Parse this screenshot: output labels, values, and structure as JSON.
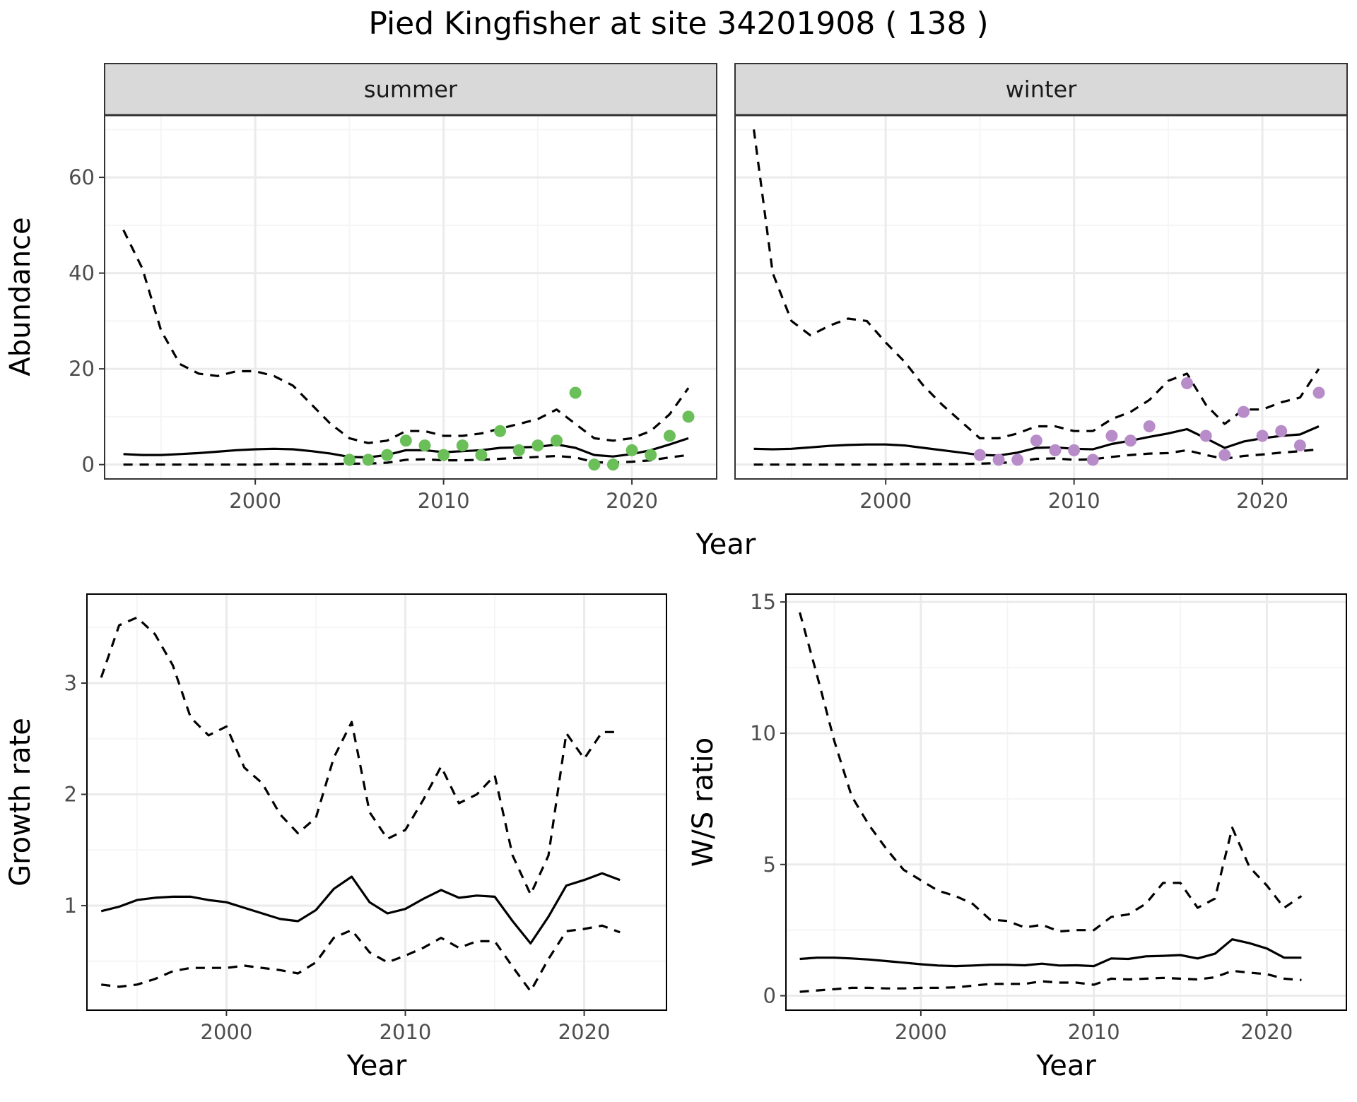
{
  "title": "Pied Kingfisher at site 34201908 ( 138 )",
  "colors": {
    "summer_points": "#6bbf59",
    "winter_points": "#b78cc9",
    "lines": "#000000",
    "grid_major": "#ebebeb",
    "grid_minor": "#f5f5f5",
    "strip_bg": "#d9d9d9"
  },
  "chart_data": [
    {
      "type": "line",
      "panel": "summer",
      "facet_label": "summer",
      "xlabel": "Year",
      "ylabel": "Abundance",
      "xlim": [
        1992,
        2024.5
      ],
      "ylim": [
        -3,
        73
      ],
      "x_ticks": [
        2000,
        2010,
        2020
      ],
      "y_ticks": [
        0,
        20,
        40,
        60
      ],
      "grid": true,
      "shared_axes": true,
      "points": {
        "color": "#6bbf59",
        "x": [
          2005,
          2006,
          2007,
          2008,
          2009,
          2010,
          2011,
          2012,
          2013,
          2014,
          2015,
          2016,
          2017,
          2018,
          2019,
          2020,
          2021,
          2022,
          2023
        ],
        "y": [
          1,
          1,
          2,
          5,
          4,
          2,
          4,
          2,
          7,
          3,
          4,
          5,
          15,
          0,
          0,
          3,
          2,
          6,
          10
        ]
      },
      "series": [
        {
          "style": "solid",
          "x": [
            1993,
            1994,
            1995,
            1996,
            1997,
            1998,
            1999,
            2000,
            2001,
            2002,
            2003,
            2004,
            2005,
            2006,
            2007,
            2008,
            2009,
            2010,
            2011,
            2012,
            2013,
            2014,
            2015,
            2016,
            2017,
            2018,
            2019,
            2020,
            2021,
            2022,
            2023
          ],
          "y": [
            2.2,
            2.0,
            2.0,
            2.2,
            2.4,
            2.7,
            3.0,
            3.2,
            3.3,
            3.2,
            2.8,
            2.3,
            1.6,
            1.5,
            2.0,
            3.0,
            3.0,
            2.6,
            2.8,
            3.0,
            3.5,
            3.6,
            3.7,
            4.2,
            3.5,
            2.0,
            1.7,
            2.2,
            3.0,
            4.2,
            5.5
          ]
        },
        {
          "style": "dashed",
          "x": [
            1993,
            1994,
            1995,
            1996,
            1997,
            1998,
            1999,
            2000,
            2001,
            2002,
            2003,
            2004,
            2005,
            2006,
            2007,
            2008,
            2009,
            2010,
            2011,
            2012,
            2013,
            2014,
            2015,
            2016,
            2017,
            2018,
            2019,
            2020,
            2021,
            2022,
            2023
          ],
          "y": [
            49,
            41,
            28,
            21,
            19,
            18.5,
            19.5,
            19.5,
            18.5,
            16.5,
            12.5,
            8.5,
            5.5,
            4.5,
            5,
            7,
            7,
            6,
            6,
            6.5,
            7.5,
            8.5,
            9.5,
            11.5,
            8.5,
            5.5,
            5,
            5.5,
            7,
            10.5,
            16
          ]
        },
        {
          "style": "dashed",
          "x": [
            1993,
            1994,
            1995,
            1996,
            1997,
            1998,
            1999,
            2000,
            2001,
            2002,
            2003,
            2004,
            2005,
            2006,
            2007,
            2008,
            2009,
            2010,
            2011,
            2012,
            2013,
            2014,
            2015,
            2016,
            2017,
            2018,
            2019,
            2020,
            2021,
            2022,
            2023
          ],
          "y": [
            0,
            0,
            0,
            0,
            0,
            0,
            0,
            0,
            0.1,
            0.1,
            0.1,
            0.1,
            0.2,
            0.2,
            0.4,
            1.0,
            1.1,
            0.9,
            0.9,
            1.0,
            1.2,
            1.4,
            1.6,
            1.8,
            1.5,
            0.5,
            0.4,
            0.6,
            0.9,
            1.5,
            2.0
          ]
        }
      ]
    },
    {
      "type": "line",
      "panel": "winter",
      "facet_label": "winter",
      "xlabel": "Year",
      "ylabel": "Abundance",
      "xlim": [
        1992,
        2024.5
      ],
      "ylim": [
        -3,
        73
      ],
      "x_ticks": [
        2000,
        2010,
        2020
      ],
      "y_ticks": [
        0,
        20,
        40,
        60
      ],
      "grid": true,
      "shared_axes": true,
      "points": {
        "color": "#b78cc9",
        "x": [
          2005,
          2006,
          2007,
          2008,
          2009,
          2010,
          2011,
          2012,
          2013,
          2014,
          2016,
          2017,
          2018,
          2019,
          2020,
          2021,
          2022,
          2023
        ],
        "y": [
          2,
          1,
          1,
          5,
          3,
          3,
          1,
          6,
          5,
          8,
          17,
          6,
          2,
          11,
          6,
          7,
          4,
          15
        ]
      },
      "series": [
        {
          "style": "solid",
          "x": [
            1993,
            1994,
            1995,
            1996,
            1997,
            1998,
            1999,
            2000,
            2001,
            2002,
            2003,
            2004,
            2005,
            2006,
            2007,
            2008,
            2009,
            2010,
            2011,
            2012,
            2013,
            2014,
            2015,
            2016,
            2017,
            2018,
            2019,
            2020,
            2021,
            2022,
            2023
          ],
          "y": [
            3.3,
            3.2,
            3.3,
            3.6,
            3.9,
            4.1,
            4.2,
            4.2,
            4.0,
            3.5,
            3.0,
            2.5,
            2.0,
            1.9,
            2.5,
            3.5,
            3.6,
            3.3,
            3.2,
            4.3,
            5.0,
            5.8,
            6.5,
            7.4,
            5.5,
            3.5,
            4.8,
            5.5,
            6.0,
            6.3,
            8.0
          ]
        },
        {
          "style": "dashed",
          "x": [
            1993,
            1994,
            1995,
            1996,
            1997,
            1998,
            1999,
            2000,
            2001,
            2002,
            2003,
            2004,
            2005,
            2006,
            2007,
            2008,
            2009,
            2010,
            2011,
            2012,
            2013,
            2014,
            2015,
            2016,
            2017,
            2018,
            2019,
            2020,
            2021,
            2022,
            2023
          ],
          "y": [
            70,
            40,
            30,
            27,
            29,
            30.5,
            30,
            25.5,
            21.5,
            16.5,
            12.5,
            9,
            5.5,
            5.5,
            6.5,
            8,
            8,
            7,
            7,
            9.5,
            11,
            13.5,
            17.5,
            19,
            12.5,
            8.5,
            11.5,
            11.5,
            13,
            14,
            20
          ]
        },
        {
          "style": "dashed",
          "x": [
            1993,
            1994,
            1995,
            1996,
            1997,
            1998,
            1999,
            2000,
            2001,
            2002,
            2003,
            2004,
            2005,
            2006,
            2007,
            2008,
            2009,
            2010,
            2011,
            2012,
            2013,
            2014,
            2015,
            2016,
            2017,
            2018,
            2019,
            2020,
            2021,
            2022,
            2023
          ],
          "y": [
            0,
            0,
            0,
            0,
            0,
            0,
            0,
            0,
            0.1,
            0.1,
            0.1,
            0.1,
            0.2,
            0.3,
            0.6,
            1.2,
            1.3,
            1.0,
            1.1,
            1.6,
            2.0,
            2.3,
            2.4,
            3.0,
            2.0,
            1.2,
            1.8,
            2.1,
            2.5,
            2.8,
            3.2
          ]
        }
      ]
    },
    {
      "type": "line",
      "panel": "growth",
      "xlabel": "Year",
      "ylabel": "Growth rate",
      "xlim": [
        1992.2,
        2024.6
      ],
      "ylim": [
        0.06,
        3.8
      ],
      "x_ticks": [
        2000,
        2010,
        2020
      ],
      "y_ticks": [
        1,
        2,
        3
      ],
      "grid": true,
      "series": [
        {
          "style": "solid",
          "x": [
            1993,
            1994,
            1995,
            1996,
            1997,
            1998,
            1999,
            2000,
            2001,
            2002,
            2003,
            2004,
            2005,
            2006,
            2007,
            2008,
            2009,
            2010,
            2011,
            2012,
            2013,
            2014,
            2015,
            2016,
            2017,
            2018,
            2019,
            2020,
            2021,
            2022
          ],
          "y": [
            0.95,
            0.99,
            1.05,
            1.07,
            1.08,
            1.08,
            1.05,
            1.03,
            0.98,
            0.93,
            0.88,
            0.86,
            0.96,
            1.15,
            1.26,
            1.03,
            0.93,
            0.97,
            1.06,
            1.14,
            1.07,
            1.09,
            1.08,
            0.86,
            0.66,
            0.9,
            1.18,
            1.23,
            1.29,
            1.23
          ]
        },
        {
          "style": "dashed",
          "x": [
            1993,
            1994,
            1995,
            1996,
            1997,
            1998,
            1999,
            2000,
            2001,
            2002,
            2003,
            2004,
            2005,
            2006,
            2007,
            2008,
            2009,
            2010,
            2011,
            2012,
            2013,
            2014,
            2015,
            2016,
            2017,
            2018,
            2019,
            2020,
            2021,
            2022
          ],
          "y": [
            3.05,
            3.52,
            3.59,
            3.44,
            3.16,
            2.69,
            2.53,
            2.61,
            2.24,
            2.1,
            1.82,
            1.65,
            1.79,
            2.33,
            2.65,
            1.84,
            1.6,
            1.68,
            1.95,
            2.25,
            1.92,
            2.0,
            2.17,
            1.45,
            1.1,
            1.45,
            2.55,
            2.32,
            2.56,
            2.56
          ]
        },
        {
          "style": "dashed",
          "x": [
            1993,
            1994,
            1995,
            1996,
            1997,
            1998,
            1999,
            2000,
            2001,
            2002,
            2003,
            2004,
            2005,
            2006,
            2007,
            2008,
            2009,
            2010,
            2011,
            2012,
            2013,
            2014,
            2015,
            2016,
            2017,
            2018,
            2019,
            2020,
            2021,
            2022
          ],
          "y": [
            0.29,
            0.27,
            0.29,
            0.34,
            0.41,
            0.44,
            0.44,
            0.44,
            0.46,
            0.44,
            0.42,
            0.39,
            0.49,
            0.71,
            0.78,
            0.58,
            0.49,
            0.55,
            0.62,
            0.71,
            0.62,
            0.68,
            0.68,
            0.45,
            0.23,
            0.52,
            0.77,
            0.79,
            0.82,
            0.76
          ]
        }
      ]
    },
    {
      "type": "line",
      "panel": "ratio",
      "xlabel": "Year",
      "ylabel": "W/S ratio",
      "xlim": [
        1992.2,
        2024.6
      ],
      "ylim": [
        -0.55,
        15.3
      ],
      "x_ticks": [
        2000,
        2010,
        2020
      ],
      "y_ticks": [
        0,
        5,
        10,
        15
      ],
      "grid": true,
      "series": [
        {
          "style": "solid",
          "x": [
            1993,
            1994,
            1995,
            1996,
            1997,
            1998,
            1999,
            2000,
            2001,
            2002,
            2003,
            2004,
            2005,
            2006,
            2007,
            2008,
            2009,
            2010,
            2011,
            2012,
            2013,
            2014,
            2015,
            2016,
            2017,
            2018,
            2019,
            2020,
            2021,
            2022
          ],
          "y": [
            1.4,
            1.45,
            1.45,
            1.42,
            1.38,
            1.32,
            1.26,
            1.2,
            1.15,
            1.13,
            1.15,
            1.18,
            1.18,
            1.16,
            1.22,
            1.15,
            1.16,
            1.13,
            1.42,
            1.4,
            1.5,
            1.52,
            1.55,
            1.42,
            1.6,
            2.15,
            2.0,
            1.8,
            1.45,
            1.45
          ]
        },
        {
          "style": "dashed",
          "x": [
            1993,
            1994,
            1995,
            1996,
            1997,
            1998,
            1999,
            2000,
            2001,
            2002,
            2003,
            2004,
            2005,
            2006,
            2007,
            2008,
            2009,
            2010,
            2011,
            2012,
            2013,
            2014,
            2015,
            2016,
            2017,
            2018,
            2019,
            2020,
            2021,
            2022
          ],
          "y": [
            14.6,
            12.2,
            9.7,
            7.6,
            6.5,
            5.6,
            4.8,
            4.4,
            4.0,
            3.8,
            3.5,
            2.9,
            2.85,
            2.6,
            2.7,
            2.45,
            2.5,
            2.5,
            3.0,
            3.1,
            3.5,
            4.3,
            4.3,
            3.35,
            3.7,
            6.4,
            4.9,
            4.2,
            3.35,
            3.8
          ]
        },
        {
          "style": "dashed",
          "x": [
            1993,
            1994,
            1995,
            1996,
            1997,
            1998,
            1999,
            2000,
            2001,
            2002,
            2003,
            2004,
            2005,
            2006,
            2007,
            2008,
            2009,
            2010,
            2011,
            2012,
            2013,
            2014,
            2015,
            2016,
            2017,
            2018,
            2019,
            2020,
            2021,
            2022
          ],
          "y": [
            0.15,
            0.2,
            0.25,
            0.3,
            0.3,
            0.28,
            0.28,
            0.3,
            0.3,
            0.32,
            0.38,
            0.45,
            0.45,
            0.45,
            0.55,
            0.5,
            0.5,
            0.42,
            0.65,
            0.62,
            0.65,
            0.68,
            0.65,
            0.62,
            0.7,
            0.95,
            0.88,
            0.82,
            0.65,
            0.6
          ]
        }
      ]
    }
  ]
}
